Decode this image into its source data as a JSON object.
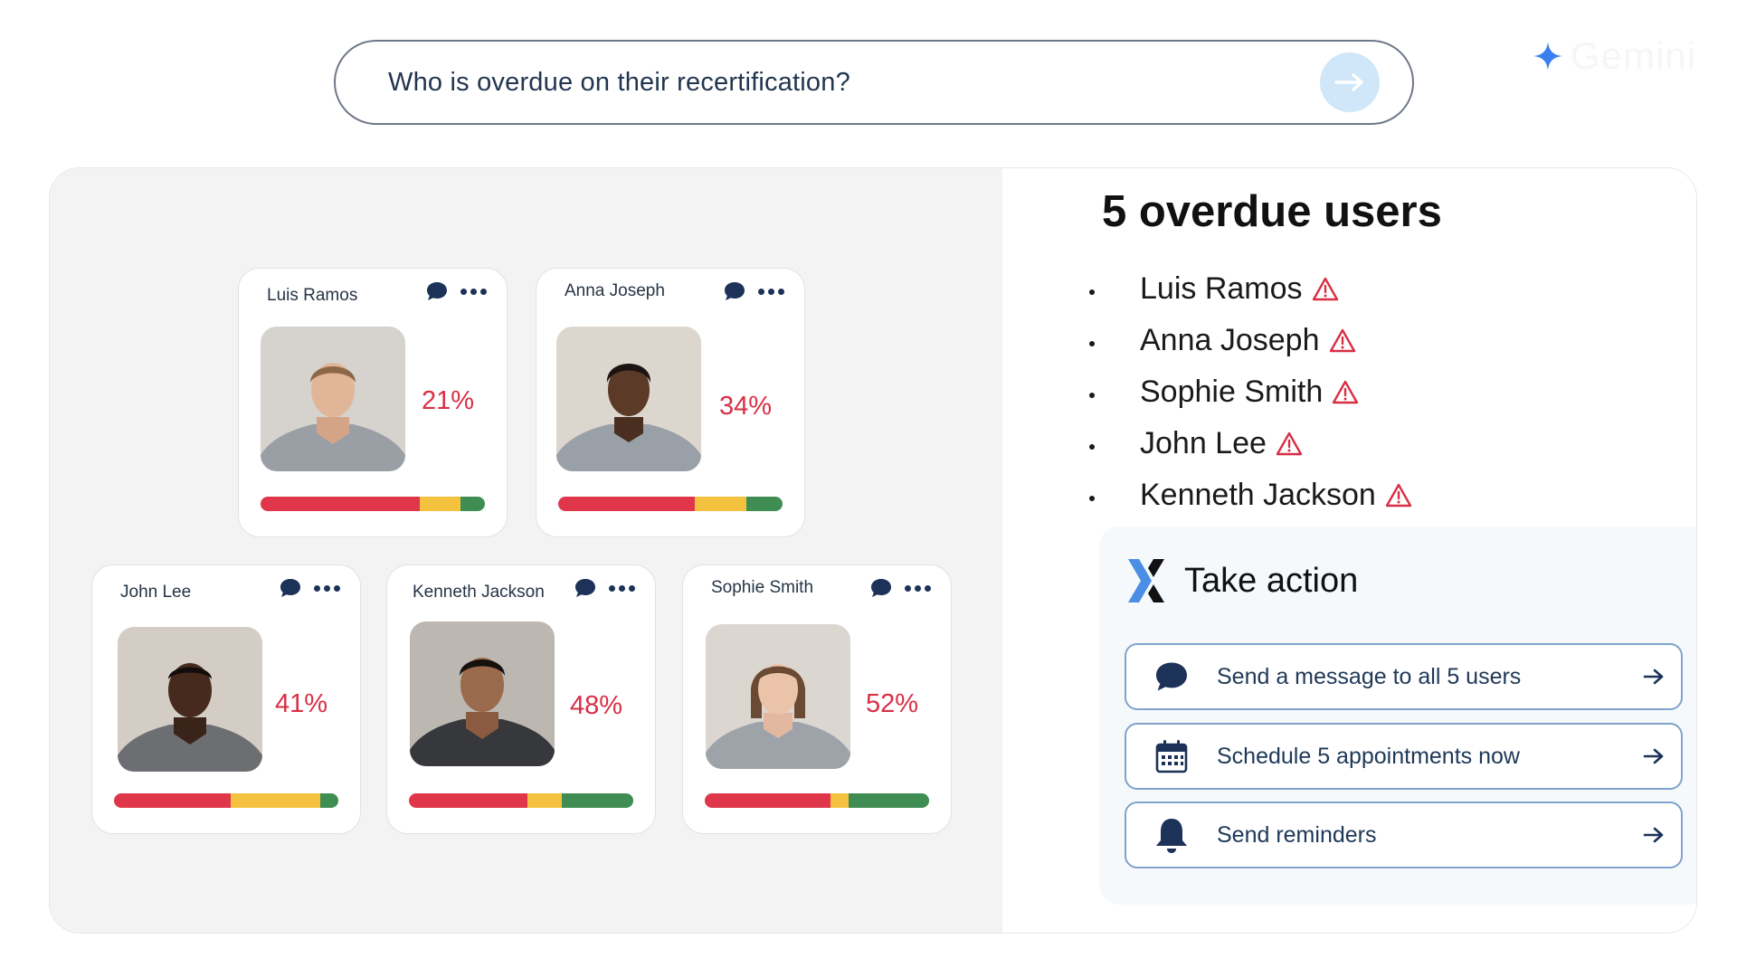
{
  "search": {
    "query": "Who is overdue on their recertification?"
  },
  "brand": {
    "name": "Gemini"
  },
  "colors": {
    "danger": "#d92f45",
    "bar_red": "#e0364a",
    "bar_yellow": "#f4c23e",
    "bar_green": "#3f8d52",
    "accent": "#1e3858"
  },
  "cards": [
    {
      "name": "Luis Ramos",
      "percent": "21%",
      "bar": {
        "red": 0.71,
        "yellow": 0.18,
        "green": 0.11
      }
    },
    {
      "name": "Anna Joseph",
      "percent": "34%",
      "bar": {
        "red": 0.61,
        "yellow": 0.23,
        "green": 0.16
      }
    },
    {
      "name": "John Lee",
      "percent": "41%",
      "bar": {
        "red": 0.52,
        "yellow": 0.4,
        "green": 0.08
      }
    },
    {
      "name": "Kenneth Jackson",
      "percent": "48%",
      "bar": {
        "red": 0.53,
        "yellow": 0.15,
        "green": 0.32
      }
    },
    {
      "name": "Sophie Smith",
      "percent": "52%",
      "bar": {
        "red": 0.56,
        "yellow": 0.08,
        "green": 0.36
      }
    }
  ],
  "overdue": {
    "heading": "5 overdue users",
    "users": [
      "Luis Ramos",
      "Anna Joseph",
      "Sophie Smith",
      "John Lee",
      "Kenneth Jackson"
    ]
  },
  "actions": {
    "title": "Take action",
    "buttons": [
      {
        "label": "Send a message to all 5 users",
        "icon": "chat-bubble-icon"
      },
      {
        "label": "Schedule 5 appointments now",
        "icon": "calendar-icon"
      },
      {
        "label": "Send reminders",
        "icon": "bell-icon"
      }
    ]
  }
}
